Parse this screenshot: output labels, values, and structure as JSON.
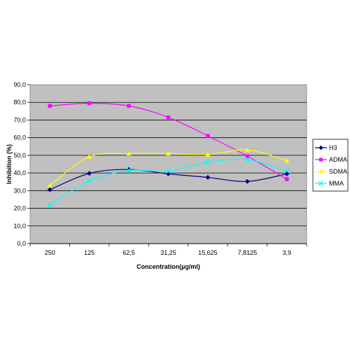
{
  "chart_data": {
    "type": "line",
    "title": "",
    "xlabel": "Concentration(µg/ml)",
    "ylabel": "Inhibition (%)",
    "categories": [
      "250",
      "125",
      "62,5",
      "31,25",
      "15,625",
      "7,8125",
      "3,9"
    ],
    "ylim": [
      0,
      90
    ],
    "ytick_labels": [
      "0,0",
      "10,0",
      "20,0",
      "30,0",
      "40,0",
      "50,0",
      "60,0",
      "70,0",
      "80,0",
      "90,0"
    ],
    "grid": true,
    "legend_position": "right",
    "plot_background": "#c0c0c0",
    "series": [
      {
        "name": "H3",
        "color": "#000080",
        "marker": "diamond",
        "values": [
          30.5,
          39.8,
          42.0,
          39.5,
          37.5,
          35.2,
          39.5
        ]
      },
      {
        "name": "ADMA",
        "color": "#ff00ff",
        "marker": "square",
        "values": [
          78.0,
          79.5,
          78.0,
          71.5,
          61.0,
          49.5,
          36.5
        ]
      },
      {
        "name": "SDMA",
        "color": "#ffff00",
        "marker": "triangle",
        "values": [
          33.0,
          49.2,
          51.0,
          51.0,
          50.5,
          53.0,
          47.0
        ]
      },
      {
        "name": "MMA",
        "color": "#00ffff",
        "marker": "x",
        "values": [
          21.8,
          35.5,
          41.5,
          41.0,
          46.2,
          47.5,
          41.2
        ]
      }
    ]
  }
}
